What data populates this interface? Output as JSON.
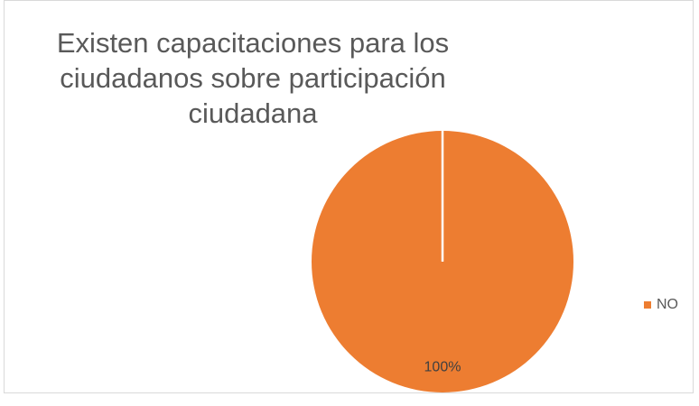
{
  "chart_data": {
    "type": "pie",
    "title": "Existen capacitaciones para los ciudadanos sobre participación ciudadana",
    "categories": [
      "NO"
    ],
    "values": [
      100
    ],
    "value_labels": [
      "100%"
    ],
    "colors": [
      "#ed7d31"
    ],
    "legend": "right"
  }
}
